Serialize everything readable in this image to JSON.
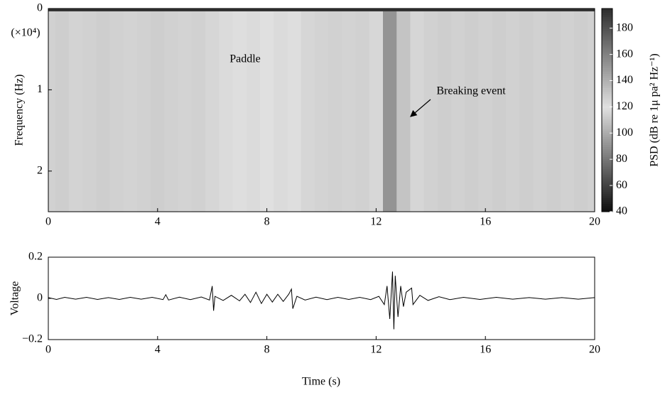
{
  "chart_data": [
    {
      "type": "heatmap",
      "ylabel": "Frequency (Hz)",
      "y_multiplier": "(×10⁴)",
      "x": [
        0,
        0.5,
        1,
        1.5,
        2,
        2.5,
        3,
        3.5,
        4,
        4.5,
        5,
        5.5,
        6,
        6.5,
        7,
        7.5,
        8,
        8.5,
        9,
        9.5,
        10,
        10.5,
        11,
        11.5,
        12,
        12.5,
        13,
        13.5,
        14,
        14.5,
        15,
        15.5,
        16,
        16.5,
        17,
        17.5,
        18,
        18.5,
        19,
        19.5,
        20
      ],
      "values": [
        114,
        113,
        115,
        114,
        113,
        114,
        115,
        114,
        113,
        114,
        115,
        114,
        116,
        118,
        119,
        118,
        120,
        118,
        121,
        116,
        115,
        114,
        115,
        114,
        124,
        152,
        132,
        116,
        114,
        113,
        114,
        113,
        114,
        113,
        114,
        113,
        114,
        113,
        114,
        113,
        114
      ],
      "xlim": [
        0,
        20
      ],
      "xticks": [
        0,
        4,
        8,
        12,
        16,
        20
      ],
      "ylim": [
        0,
        2.5
      ],
      "yticks": [
        0,
        1,
        2
      ],
      "y_inverted": true,
      "clim": [
        40,
        195
      ],
      "cticks": [
        40,
        60,
        80,
        100,
        120,
        140,
        160,
        180
      ],
      "clabel": "PSD (dB re 1μ pa² Hz⁻¹)",
      "annotations": [
        "Paddle",
        "Breaking event"
      ]
    },
    {
      "type": "line",
      "ylabel": "Voltage",
      "xlabel": "Time (s)",
      "color": "#000000",
      "x": [
        0,
        0.3,
        0.6,
        1.0,
        1.4,
        1.8,
        2.2,
        2.6,
        3.0,
        3.4,
        3.8,
        4.2,
        4.3,
        4.4,
        4.8,
        5.2,
        5.6,
        5.9,
        6.0,
        6.05,
        6.1,
        6.4,
        6.7,
        7.0,
        7.2,
        7.4,
        7.6,
        7.8,
        8.0,
        8.2,
        8.4,
        8.6,
        8.8,
        8.9,
        8.95,
        9.1,
        9.4,
        9.8,
        10.2,
        10.6,
        11.0,
        11.4,
        11.8,
        12.1,
        12.3,
        12.4,
        12.5,
        12.6,
        12.65,
        12.7,
        12.8,
        12.9,
        13.0,
        13.1,
        13.3,
        13.35,
        13.6,
        13.9,
        14.3,
        14.7,
        15.2,
        15.8,
        16.4,
        17.0,
        17.6,
        18.2,
        18.8,
        19.4,
        20.0
      ],
      "values": [
        0.004,
        -0.005,
        0.005,
        -0.004,
        0.005,
        -0.005,
        0.004,
        -0.005,
        0.005,
        -0.004,
        0.005,
        -0.006,
        0.018,
        -0.008,
        0.006,
        -0.006,
        0.007,
        -0.008,
        0.06,
        -0.06,
        0.01,
        -0.01,
        0.015,
        -0.012,
        0.02,
        -0.02,
        0.03,
        -0.025,
        0.02,
        -0.018,
        0.02,
        -0.015,
        0.02,
        0.045,
        -0.05,
        0.01,
        -0.008,
        0.006,
        -0.006,
        0.005,
        -0.005,
        0.005,
        -0.006,
        0.01,
        -0.03,
        0.06,
        -0.1,
        0.13,
        -0.15,
        0.11,
        -0.09,
        0.06,
        -0.04,
        0.03,
        0.05,
        -0.03,
        0.015,
        -0.01,
        0.008,
        -0.006,
        0.005,
        -0.005,
        0.005,
        -0.004,
        0.004,
        -0.004,
        0.004,
        -0.004,
        0.004
      ],
      "xlim": [
        0,
        20
      ],
      "xticks": [
        0,
        4,
        8,
        12,
        16,
        20
      ],
      "ylim": [
        -0.2,
        0.2
      ],
      "yticks": [
        {
          "value": -0.2,
          "label": "−0.2"
        },
        0,
        0.2
      ]
    }
  ]
}
